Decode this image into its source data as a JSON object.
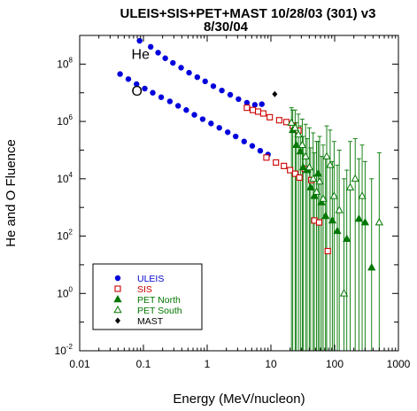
{
  "chart_data": {
    "type": "scatter",
    "title_lines": [
      "ULEIS+SIS+PET+MAST 10/28/03 (301) v3",
      "8/30/04"
    ],
    "xlabel": "Energy (MeV/nucleon)",
    "ylabel": "He and O Fluence",
    "xscale": "log",
    "yscale": "log",
    "xlim": [
      0.01,
      1000
    ],
    "ylim": [
      0.01,
      1000000000
    ],
    "x_ticks": [
      {
        "value": 0.01,
        "label": "0.01"
      },
      {
        "value": 0.1,
        "label": "0.1"
      },
      {
        "value": 1,
        "label": "1"
      },
      {
        "value": 10,
        "label": "10"
      },
      {
        "value": 100,
        "label": "100"
      },
      {
        "value": 1000,
        "label": "1000"
      }
    ],
    "y_ticks": [
      {
        "value": 0.01,
        "base": "10",
        "exp": "-2"
      },
      {
        "value": 1,
        "base": "10",
        "exp": "0"
      },
      {
        "value": 100,
        "base": "10",
        "exp": "2"
      },
      {
        "value": 10000,
        "base": "10",
        "exp": "4"
      },
      {
        "value": 1000000,
        "base": "10",
        "exp": "6"
      },
      {
        "value": 100000000,
        "base": "10",
        "exp": "8"
      }
    ],
    "annotations": [
      {
        "text": "He",
        "x": 0.065,
        "y": 150000000
      },
      {
        "text": "O",
        "x": 0.065,
        "y": 8000000
      }
    ],
    "legend": {
      "placement": "bottom-left",
      "entries": [
        {
          "label": "ULEIS",
          "marker": "circle-filled",
          "color": "#0000dd",
          "text_color": "#0000cc"
        },
        {
          "label": "SIS",
          "marker": "square-open",
          "color": "#cc0000",
          "text_color": "#cc0000"
        },
        {
          "label": "PET North",
          "marker": "triangle-filled",
          "color": "#007700",
          "text_color": "#007700"
        },
        {
          "label": "PET South",
          "marker": "triangle-open",
          "color": "#007700",
          "text_color": "#007700"
        },
        {
          "label": "MAST",
          "marker": "diamond-filled",
          "color": "#000000",
          "text_color": "#000000"
        }
      ]
    },
    "series": [
      {
        "name": "ULEIS",
        "marker": "circle-filled",
        "color": "#0000dd",
        "points": [
          [
            0.087,
            650000000
          ],
          [
            0.13,
            400000000
          ],
          [
            0.17,
            250000000
          ],
          [
            0.22,
            160000000
          ],
          [
            0.29,
            110000000
          ],
          [
            0.39,
            75000000
          ],
          [
            0.52,
            50000000
          ],
          [
            0.7,
            35000000
          ],
          [
            0.93,
            25000000
          ],
          [
            1.25,
            17000000
          ],
          [
            1.7,
            12000000
          ],
          [
            2.3,
            8500000
          ],
          [
            3.1,
            6000000
          ],
          [
            4.2,
            4500000
          ],
          [
            5.6,
            3800000
          ],
          [
            7.2,
            4000000
          ],
          [
            0.043,
            45000000
          ],
          [
            0.058,
            30000000
          ],
          [
            0.078,
            20000000
          ],
          [
            0.105,
            14000000
          ],
          [
            0.14,
            10000000
          ],
          [
            0.19,
            7000000
          ],
          [
            0.26,
            5000000
          ],
          [
            0.35,
            3500000
          ],
          [
            0.47,
            2500000
          ],
          [
            0.63,
            1700000
          ],
          [
            0.85,
            1200000
          ],
          [
            1.15,
            850000
          ],
          [
            1.55,
            600000
          ],
          [
            2.1,
            420000
          ],
          [
            2.8,
            300000
          ],
          [
            3.8,
            200000
          ],
          [
            5.1,
            140000
          ],
          [
            6.8,
            95000
          ],
          [
            9.0,
            70000
          ]
        ]
      },
      {
        "name": "SIS",
        "marker": "square-open",
        "color": "#cc0000",
        "points": [
          [
            4.2,
            3000000
          ],
          [
            5.2,
            2500000
          ],
          [
            6.3,
            2200000
          ],
          [
            7.6,
            1900000
          ],
          [
            9.6,
            1400000
          ],
          [
            13.5,
            1100000
          ],
          [
            17.5,
            950000
          ],
          [
            22,
            700000
          ],
          [
            27,
            480000
          ],
          [
            8.5,
            55000
          ],
          [
            12,
            37000
          ],
          [
            16,
            28000
          ],
          [
            20,
            20000
          ],
          [
            24,
            15000
          ],
          [
            28,
            11000
          ],
          [
            34,
            22000
          ],
          [
            43,
            9000
          ],
          [
            48,
            350
          ],
          [
            57,
            300
          ],
          [
            78,
            30
          ]
        ]
      },
      {
        "name": "PET North",
        "marker": "triangle-filled",
        "color": "#007700",
        "points": [
          [
            22,
            500000
          ],
          [
            25,
            150000
          ],
          [
            29,
            90000
          ],
          [
            32,
            25000
          ],
          [
            37,
            20000
          ],
          [
            42,
            5000
          ],
          [
            48,
            2500
          ],
          [
            55,
            15000
          ],
          [
            62,
            1500
          ],
          [
            72,
            500
          ],
          [
            92,
            350
          ],
          [
            110,
            150
          ],
          [
            155,
            80
          ],
          [
            240,
            400
          ],
          [
            300,
            300
          ],
          [
            380,
            8
          ]
        ],
        "error_high": [
          2500000,
          900000,
          700000,
          300000,
          250000,
          120000,
          80000,
          200000,
          60000,
          50000,
          40000,
          30000,
          20000,
          50000,
          40000,
          10000
        ]
      },
      {
        "name": "PET South",
        "marker": "triangle-open",
        "color": "#007700",
        "points": [
          [
            21,
            900000
          ],
          [
            24,
            600000
          ],
          [
            27,
            350000
          ],
          [
            31,
            150000
          ],
          [
            35,
            60000
          ],
          [
            40,
            25000
          ],
          [
            46,
            10000
          ],
          [
            52,
            3500
          ],
          [
            58,
            8000
          ],
          [
            66,
            2000
          ],
          [
            75,
            60000
          ],
          [
            85,
            30000
          ],
          [
            98,
            2500
          ],
          [
            118,
            800
          ],
          [
            140,
            1
          ],
          [
            175,
            5000
          ],
          [
            210,
            10000
          ],
          [
            270,
            2500
          ],
          [
            500,
            300
          ]
        ],
        "error_high": [
          3000000,
          2500000,
          1800000,
          1200000,
          800000,
          600000,
          400000,
          200000,
          300000,
          150000,
          700000,
          500000,
          200000,
          100000,
          10000,
          200000,
          250000,
          150000,
          80000
        ]
      },
      {
        "name": "MAST",
        "marker": "diamond-filled",
        "color": "#000000",
        "points": [
          [
            11.5,
            9000000
          ]
        ]
      }
    ]
  }
}
